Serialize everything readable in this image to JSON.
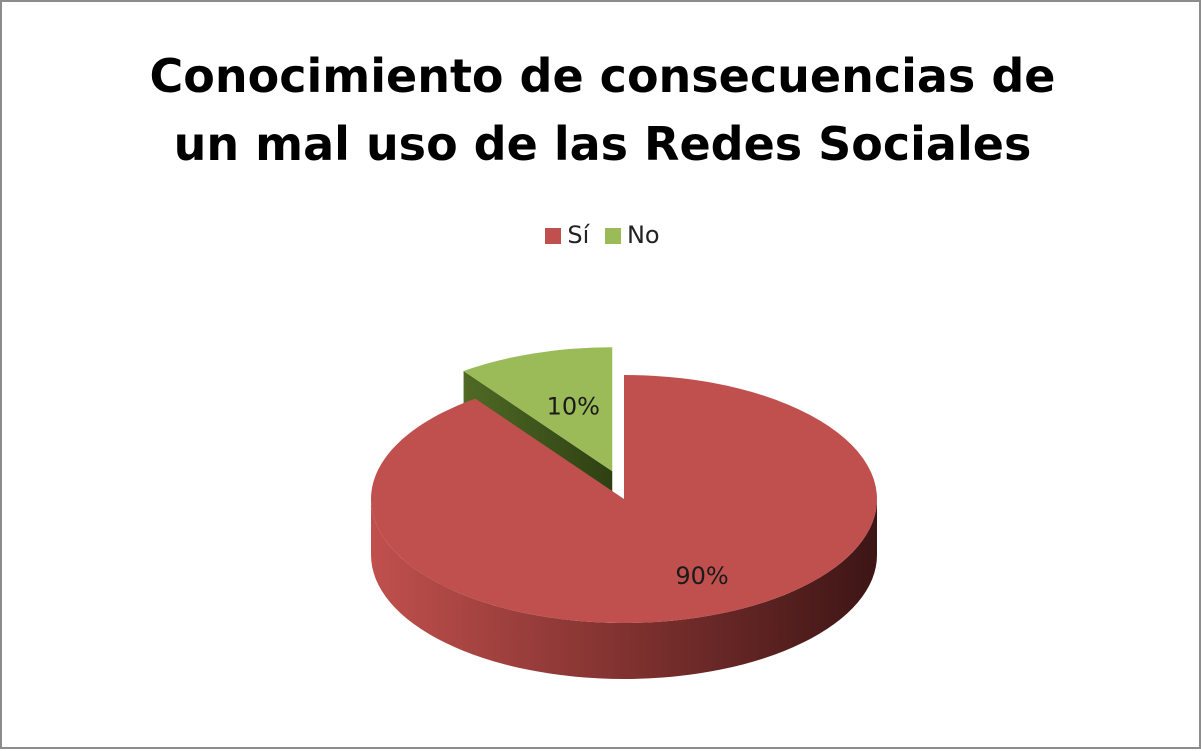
{
  "chart_data": {
    "type": "pie",
    "title": "Conocimiento de consecuencias de un mal uso de las Redes Sociales",
    "title_lines": [
      "Conocimiento de consecuencias de",
      "un mal uso de las Redes Sociales"
    ],
    "legend_placement": "top",
    "categories": [
      "Sí",
      "No"
    ],
    "values": [
      90,
      10
    ],
    "data_labels": [
      "90%",
      "10%"
    ],
    "colors": [
      "#c0504d",
      "#9bbb59"
    ],
    "three_d": true,
    "exploded": true
  }
}
